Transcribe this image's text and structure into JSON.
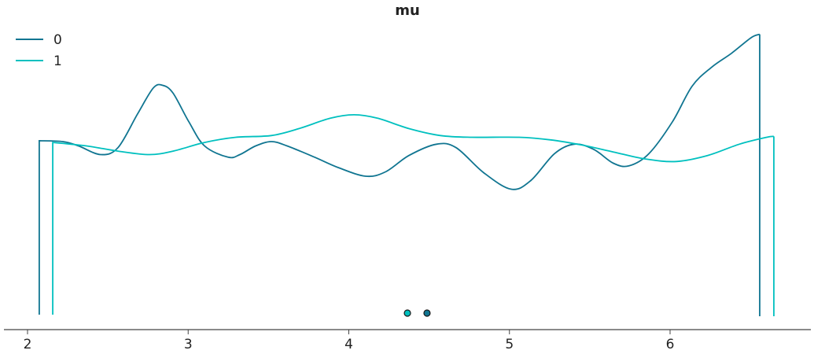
{
  "chart_data": {
    "type": "line",
    "title": "mu",
    "xlabel": "",
    "ylabel": "",
    "xlim": [
      1.85,
      6.9
    ],
    "xticks": [
      "2",
      "3",
      "4",
      "5",
      "6"
    ],
    "grid": false,
    "legend_placement": "top-left",
    "series": [
      {
        "name": "0",
        "color": "#107591",
        "x": [
          2.073,
          2.22,
          2.318,
          2.455,
          2.563,
          2.685,
          2.783,
          2.842,
          2.906,
          3.004,
          3.102,
          3.248,
          3.322,
          3.42,
          3.518,
          3.616,
          3.787,
          3.934,
          4.105,
          4.228,
          4.375,
          4.546,
          4.668,
          4.84,
          5.011,
          5.133,
          5.28,
          5.403,
          5.525,
          5.647,
          5.745,
          5.868,
          6.015,
          6.137,
          6.259,
          6.382,
          6.504,
          6.558
        ],
        "y": [
          0.201,
          0.2,
          0.195,
          0.185,
          0.193,
          0.232,
          0.262,
          0.265,
          0.256,
          0.223,
          0.195,
          0.182,
          0.185,
          0.195,
          0.2,
          0.195,
          0.182,
          0.17,
          0.16,
          0.165,
          0.184,
          0.197,
          0.193,
          0.164,
          0.145,
          0.155,
          0.186,
          0.197,
          0.191,
          0.175,
          0.172,
          0.186,
          0.223,
          0.264,
          0.286,
          0.302,
          0.32,
          0.324
        ],
        "point_estimate": 4.487
      },
      {
        "name": "1",
        "color": "#00c0bf",
        "x": [
          2.157,
          2.367,
          2.563,
          2.759,
          2.906,
          3.102,
          3.297,
          3.518,
          3.689,
          3.885,
          4.032,
          4.179,
          4.375,
          4.57,
          4.766,
          5.06,
          5.256,
          5.452,
          5.647,
          5.843,
          6.039,
          6.235,
          6.431,
          6.602,
          6.646
        ],
        "y": [
          0.199,
          0.195,
          0.189,
          0.185,
          0.189,
          0.199,
          0.205,
          0.207,
          0.215,
          0.227,
          0.231,
          0.227,
          0.215,
          0.207,
          0.205,
          0.205,
          0.202,
          0.196,
          0.188,
          0.18,
          0.177,
          0.184,
          0.197,
          0.205,
          0.206
        ],
        "point_estimate": 4.365
      }
    ]
  }
}
